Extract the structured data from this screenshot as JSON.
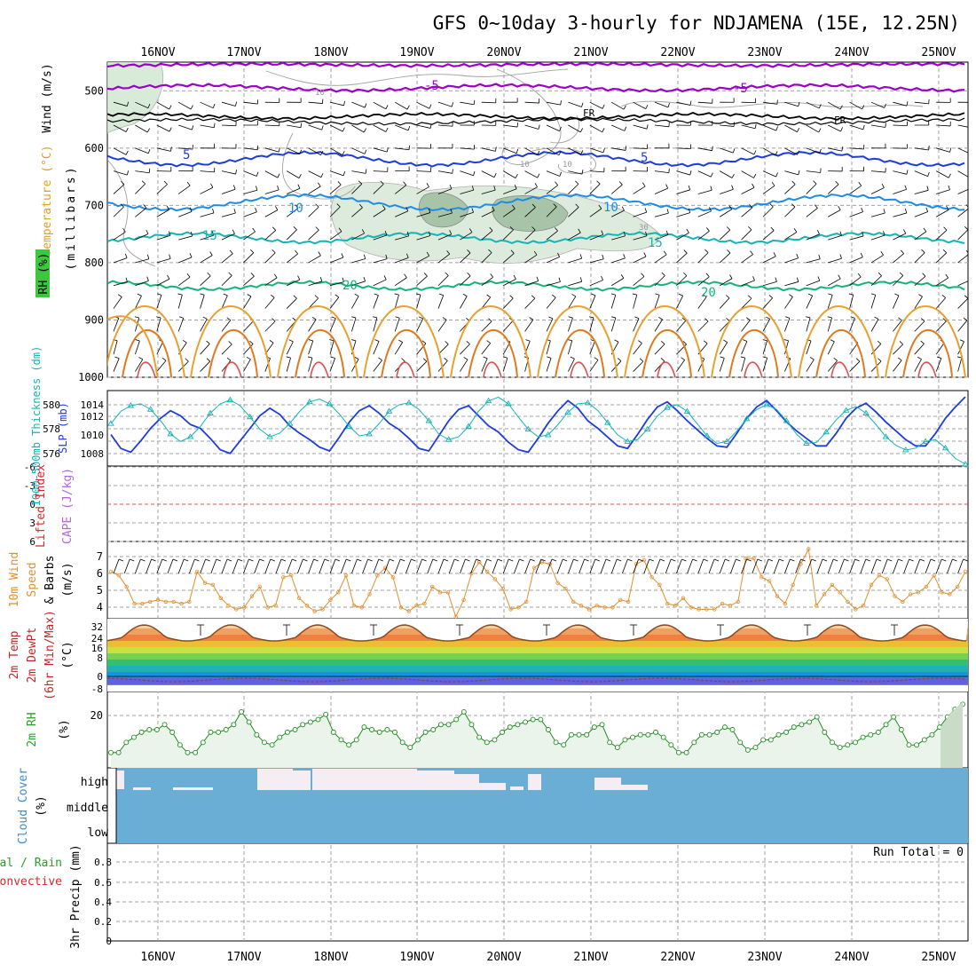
{
  "title": "GFS 0~10day 3-hourly for NDJAMENA (15E, 12.25N)",
  "date_labels": [
    "16NOV",
    "17NOV",
    "18NOV",
    "19NOV",
    "20NOV",
    "21NOV",
    "22NOV",
    "23NOV",
    "24NOV",
    "25NOV"
  ],
  "colors": {
    "purple": "#9b00c8",
    "blue": "#1e3cdc",
    "lightblue": "#1e8ce6",
    "teal": "#14b4b4",
    "green": "#14b478",
    "orange": "#e09030",
    "grid": "#a0a0a0"
  },
  "panels": {
    "upper": {
      "y_title_lines": [
        "Wind (m/s)",
        "Temperature (°C)",
        "RH (%)"
      ],
      "y_units": "(millibars)",
      "ylim": [
        1000,
        450
      ],
      "yticks": [
        500,
        600,
        700,
        800,
        900,
        1000
      ],
      "temp_labels": [
        "-5",
        "FR",
        "5",
        "10",
        "15",
        "20"
      ],
      "rh_labels": [
        "10",
        "30"
      ]
    },
    "thickness_slp": {
      "left_title": "1000-500mb Thickness (dm)",
      "right_title": "SLP (mb)",
      "left_ticks": [
        "580",
        "578",
        "576"
      ],
      "right_ticks": [
        "1014",
        "1012",
        "1010",
        "1008"
      ]
    },
    "stability": {
      "title_line1": "Lifted Index",
      "title_line2": "CAPE (J/kg)",
      "yticks": [
        "-6",
        "-3",
        "0",
        "3",
        "6"
      ]
    },
    "wind10m": {
      "title_line1": "10m Wind",
      "title_line2": "Speed",
      "title_line3": "& Barbs",
      "units": "(m/s)",
      "yticks": [
        "7",
        "6",
        "5",
        "4"
      ]
    },
    "temp2m": {
      "title_line1": "2m Temp",
      "title_line2": "2m DewPt",
      "title_line3": "(6hr Min/Max)",
      "units": "(°C)",
      "yticks": [
        "32",
        "24",
        "16",
        "8",
        "0",
        "-8"
      ]
    },
    "rh2m": {
      "title": "2m RH",
      "units": "(%)",
      "yticks": [
        "20"
      ]
    },
    "cloud": {
      "title": "Cloud Cover",
      "units": "(%)",
      "levels": [
        "high",
        "middle",
        "low"
      ]
    },
    "precip": {
      "title_line1": "Total / Rain",
      "title_line2": "Convective",
      "ylabel": "3hr Precip (mm)",
      "yticks": [
        "0.8",
        "0.6",
        "0.4",
        "0.2",
        "0"
      ],
      "run_total": "Run Total = 0"
    }
  },
  "chart_data": [
    {
      "type": "line",
      "title": "1000-500mb Thickness (dm)",
      "ylim": [
        575,
        581
      ],
      "x_start": "15NOV 12Z",
      "x_step": "3 hours",
      "series": [
        {
          "name": "1000-500mb Thickness",
          "values": [
            577.5,
            576.4,
            576.1,
            577.0,
            578.0,
            578.8,
            579.4,
            579.0,
            578.3,
            578.0,
            577.2,
            576.3,
            576.0,
            577.0,
            578.0,
            579.0,
            579.6,
            579.1,
            578.2,
            577.6,
            577.1,
            576.5,
            576.2,
            577.3,
            578.5,
            579.4,
            579.8,
            579.2,
            578.4,
            577.9,
            577.2,
            576.4,
            576.2,
            577.4,
            578.6,
            579.5,
            579.8,
            579.0,
            578.2,
            577.7,
            576.9,
            576.3,
            576.1,
            577.2,
            578.4,
            579.4,
            580.2,
            579.6,
            578.6,
            578.0,
            577.3,
            576.6,
            576.4,
            577.5,
            578.7,
            579.7,
            580.1,
            579.4,
            578.6,
            577.9,
            577.2,
            576.6,
            576.5,
            577.6,
            578.8,
            579.7,
            580.2,
            579.4,
            578.5,
            577.8,
            577.2,
            576.6,
            576.6,
            577.6,
            578.8,
            579.6,
            580.0,
            579.3,
            578.5,
            577.8,
            577.1,
            576.6,
            576.6,
            577.6,
            578.8,
            579.7,
            580.5
          ]
        }
      ]
    },
    {
      "type": "line",
      "title": "SLP (mb)",
      "ylim": [
        1007,
        1015
      ],
      "series": [
        {
          "name": "SLP",
          "values": [
            1011.5,
            1012.8,
            1013.4,
            1013.6,
            1013.0,
            1011.8,
            1010.4,
            1009.6,
            1010.1,
            1011.2,
            1012.6,
            1013.6,
            1014.0,
            1013.4,
            1012.2,
            1010.9,
            1010.1,
            1010.5,
            1011.5,
            1012.8,
            1013.8,
            1014.1,
            1013.6,
            1012.5,
            1011.2,
            1010.2,
            1010.4,
            1011.5,
            1012.8,
            1013.5,
            1013.7,
            1013.0,
            1011.8,
            1010.4,
            1009.8,
            1010.1,
            1011.2,
            1012.8,
            1013.9,
            1014.3,
            1013.6,
            1012.2,
            1010.9,
            1010.1,
            1010.3,
            1011.4,
            1012.7,
            1013.6,
            1013.7,
            1012.9,
            1011.6,
            1010.3,
            1009.6,
            1009.8,
            1010.9,
            1012.3,
            1013.2,
            1013.5,
            1012.8,
            1011.5,
            1010.2,
            1009.4,
            1009.6,
            1010.7,
            1012.0,
            1013.0,
            1013.5,
            1013.0,
            1011.8,
            1010.4,
            1009.4,
            1009.5,
            1010.6,
            1011.9,
            1012.9,
            1013.3,
            1012.6,
            1011.4,
            1010.1,
            1009.2,
            1008.7,
            1008.9,
            1009.6,
            1009.8,
            1008.9,
            1007.8,
            1007.2
          ]
        }
      ]
    },
    {
      "type": "line",
      "title": "10m Wind Speed (m/s)",
      "ylim": [
        3.5,
        7.6
      ],
      "series": [
        {
          "name": "10m Wind Speed",
          "values": [
            6.0,
            5.8,
            5.2,
            4.3,
            4.3,
            4.4,
            4.5,
            4.4,
            4.4,
            4.3,
            4.4,
            6.0,
            5.4,
            5.3,
            4.6,
            4.2,
            4.0,
            4.1,
            4.7,
            5.2,
            4.1,
            4.2,
            5.7,
            5.8,
            4.6,
            4.2,
            3.9,
            4.0,
            4.5,
            4.9,
            5.8,
            4.2,
            4.1,
            4.8,
            5.8,
            6.2,
            5.7,
            4.1,
            3.9,
            4.2,
            4.3,
            5.2,
            4.9,
            4.9,
            3.6,
            4.5,
            5.9,
            6.5,
            6.0,
            5.6,
            5.1,
            4.0,
            4.1,
            4.4,
            6.2,
            6.5,
            6.4,
            5.4,
            5.1,
            4.4,
            4.2,
            4.0,
            4.2,
            4.1,
            4.1,
            4.5,
            4.4,
            6.4,
            6.6,
            5.7,
            5.3,
            4.3,
            4.2,
            4.6,
            4.1,
            4.0,
            4.0,
            4.0,
            4.3,
            4.2,
            4.4,
            6.7,
            6.7,
            5.7,
            5.5,
            4.7,
            4.3,
            5.3,
            6.4,
            7.2,
            4.2,
            4.8,
            5.3,
            4.9,
            4.4,
            4.0,
            4.2,
            5.3,
            5.8,
            5.6,
            4.7,
            4.4,
            4.8,
            4.9,
            5.2,
            5.8,
            4.9,
            4.8,
            5.2,
            6.0
          ]
        }
      ]
    },
    {
      "type": "line",
      "title": "2m RH (%)",
      "ylim": [
        0,
        30
      ],
      "series": [
        {
          "name": "2m RH",
          "values": [
            6,
            6,
            10,
            12,
            14,
            15,
            15,
            17,
            14,
            9,
            6,
            6,
            10,
            14,
            14,
            15,
            17,
            22,
            18,
            13,
            10,
            9,
            12,
            14,
            15,
            17,
            18,
            19,
            21,
            14,
            11,
            9,
            11,
            16,
            15,
            14,
            15,
            14,
            10,
            8,
            11,
            14,
            15,
            17,
            17,
            19,
            22,
            17,
            12,
            10,
            11,
            14,
            16,
            17,
            18,
            19,
            19,
            15,
            10,
            9,
            13,
            13,
            13,
            16,
            17,
            10,
            8,
            11,
            12,
            13,
            13,
            14,
            12,
            9,
            6,
            6,
            10,
            13,
            13,
            14,
            16,
            15,
            10,
            7,
            8,
            11,
            11,
            13,
            14,
            16,
            17,
            18,
            20,
            14,
            10,
            8,
            9,
            10,
            12,
            13,
            14,
            17,
            20,
            15,
            9,
            9,
            11,
            13,
            16,
            20,
            23,
            25
          ]
        }
      ]
    },
    {
      "type": "bar",
      "title": "3hr Precip (mm)",
      "ylim": [
        0,
        0.9
      ],
      "series": [
        {
          "name": "3hr Precip",
          "values": [
            0
          ]
        }
      ]
    }
  ]
}
